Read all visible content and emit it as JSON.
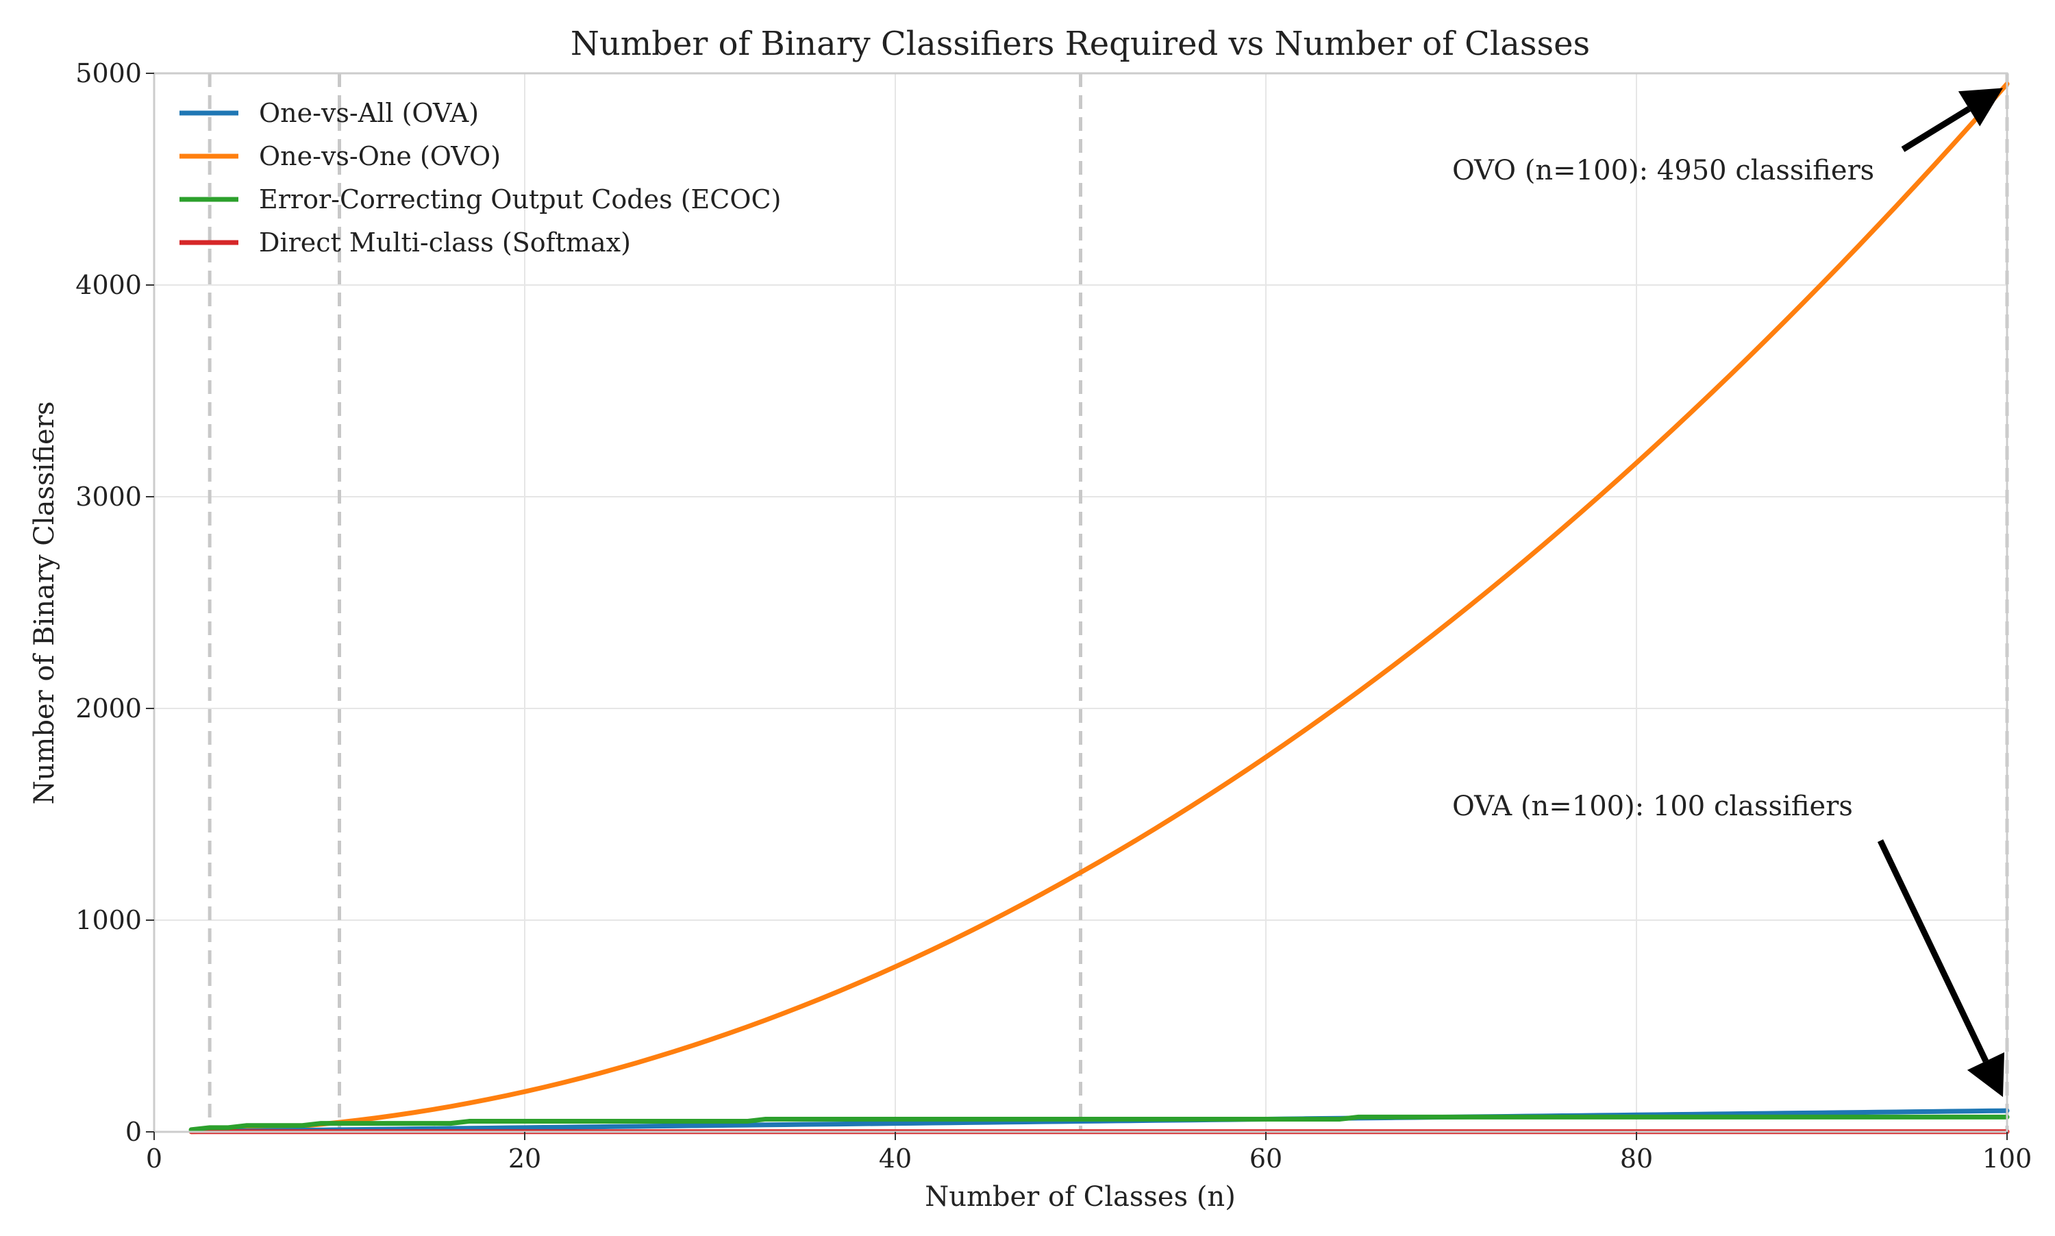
{
  "chart_data": {
    "type": "line",
    "title": "Number of Binary Classifiers Required vs Number of Classes",
    "xlabel": "Number of Classes (n)",
    "ylabel": "Number of Binary Classifiers",
    "xlim": [
      0,
      100
    ],
    "ylim": [
      0,
      5000
    ],
    "xticks": [
      "0",
      "20",
      "40",
      "60",
      "80",
      "100"
    ],
    "xtick_values": [
      0,
      20,
      40,
      60,
      80,
      100
    ],
    "yticks": [
      "0",
      "1000",
      "2000",
      "3000",
      "4000",
      "5000"
    ],
    "ytick_values": [
      0,
      1000,
      2000,
      3000,
      4000,
      5000
    ],
    "grid": true,
    "legend_position": "top-left",
    "reference_lines_x": [
      3,
      10,
      50,
      100
    ],
    "x": [
      2,
      3,
      4,
      5,
      6,
      7,
      8,
      9,
      10,
      11,
      12,
      13,
      14,
      15,
      16,
      17,
      18,
      19,
      20,
      21,
      22,
      23,
      24,
      25,
      26,
      27,
      28,
      29,
      30,
      31,
      32,
      33,
      34,
      35,
      36,
      37,
      38,
      39,
      40,
      41,
      42,
      43,
      44,
      45,
      46,
      47,
      48,
      49,
      50,
      51,
      52,
      53,
      54,
      55,
      56,
      57,
      58,
      59,
      60,
      61,
      62,
      63,
      64,
      65,
      66,
      67,
      68,
      69,
      70,
      71,
      72,
      73,
      74,
      75,
      76,
      77,
      78,
      79,
      80,
      81,
      82,
      83,
      84,
      85,
      86,
      87,
      88,
      89,
      90,
      91,
      92,
      93,
      94,
      95,
      96,
      97,
      98,
      99,
      100
    ],
    "series": [
      {
        "name": "One-vs-All (OVA)",
        "color": "#1f77b4",
        "values": [
          2,
          3,
          4,
          5,
          6,
          7,
          8,
          9,
          10,
          11,
          12,
          13,
          14,
          15,
          16,
          17,
          18,
          19,
          20,
          21,
          22,
          23,
          24,
          25,
          26,
          27,
          28,
          29,
          30,
          31,
          32,
          33,
          34,
          35,
          36,
          37,
          38,
          39,
          40,
          41,
          42,
          43,
          44,
          45,
          46,
          47,
          48,
          49,
          50,
          51,
          52,
          53,
          54,
          55,
          56,
          57,
          58,
          59,
          60,
          61,
          62,
          63,
          64,
          65,
          66,
          67,
          68,
          69,
          70,
          71,
          72,
          73,
          74,
          75,
          76,
          77,
          78,
          79,
          80,
          81,
          82,
          83,
          84,
          85,
          86,
          87,
          88,
          89,
          90,
          91,
          92,
          93,
          94,
          95,
          96,
          97,
          98,
          99,
          100
        ]
      },
      {
        "name": "One-vs-One (OVO)",
        "color": "#ff7f0e",
        "values": [
          1,
          3,
          6,
          10,
          15,
          21,
          28,
          36,
          45,
          55,
          66,
          78,
          91,
          105,
          120,
          136,
          153,
          171,
          190,
          210,
          231,
          253,
          276,
          300,
          325,
          351,
          378,
          406,
          435,
          465,
          496,
          528,
          561,
          595,
          630,
          666,
          703,
          741,
          780,
          820,
          861,
          903,
          946,
          990,
          1035,
          1081,
          1128,
          1176,
          1225,
          1275,
          1326,
          1378,
          1431,
          1485,
          1540,
          1596,
          1653,
          1711,
          1770,
          1830,
          1891,
          1953,
          2016,
          2080,
          2145,
          2211,
          2278,
          2346,
          2415,
          2485,
          2556,
          2628,
          2701,
          2775,
          2850,
          2926,
          3003,
          3081,
          3160,
          3240,
          3321,
          3403,
          3486,
          3570,
          3655,
          3741,
          3828,
          3916,
          4005,
          4095,
          4186,
          4278,
          4371,
          4465,
          4560,
          4656,
          4753,
          4851,
          4950
        ]
      },
      {
        "name": "Error-Correcting Output Codes (ECOC)",
        "color": "#2ca02c",
        "values": [
          10,
          20,
          20,
          30,
          30,
          30,
          30,
          40,
          40,
          40,
          40,
          40,
          40,
          40,
          40,
          50,
          50,
          50,
          50,
          50,
          50,
          50,
          50,
          50,
          50,
          50,
          50,
          50,
          50,
          50,
          50,
          60,
          60,
          60,
          60,
          60,
          60,
          60,
          60,
          60,
          60,
          60,
          60,
          60,
          60,
          60,
          60,
          60,
          60,
          60,
          60,
          60,
          60,
          60,
          60,
          60,
          60,
          60,
          60,
          60,
          60,
          60,
          60,
          70,
          70,
          70,
          70,
          70,
          70,
          70,
          70,
          70,
          70,
          70,
          70,
          70,
          70,
          70,
          70,
          70,
          70,
          70,
          70,
          70,
          70,
          70,
          70,
          70,
          70,
          70,
          70,
          70,
          70,
          70,
          70,
          70,
          70,
          70,
          70
        ]
      },
      {
        "name": "Direct Multi-class (Softmax)",
        "color": "#d62728",
        "values": [
          1,
          1,
          1,
          1,
          1,
          1,
          1,
          1,
          1,
          1,
          1,
          1,
          1,
          1,
          1,
          1,
          1,
          1,
          1,
          1,
          1,
          1,
          1,
          1,
          1,
          1,
          1,
          1,
          1,
          1,
          1,
          1,
          1,
          1,
          1,
          1,
          1,
          1,
          1,
          1,
          1,
          1,
          1,
          1,
          1,
          1,
          1,
          1,
          1,
          1,
          1,
          1,
          1,
          1,
          1,
          1,
          1,
          1,
          1,
          1,
          1,
          1,
          1,
          1,
          1,
          1,
          1,
          1,
          1,
          1,
          1,
          1,
          1,
          1,
          1,
          1,
          1,
          1,
          1,
          1,
          1,
          1,
          1,
          1,
          1,
          1,
          1,
          1,
          1,
          1,
          1,
          1,
          1,
          1,
          1,
          1,
          1,
          1,
          1
        ]
      }
    ],
    "annotations": [
      {
        "text": "OVO (n=100): 4950 classifiers",
        "target": [
          100,
          4950
        ],
        "text_at": [
          70,
          4500
        ]
      },
      {
        "text": "OVA (n=100): 100 classifiers",
        "target": [
          100,
          100
        ],
        "text_at": [
          70,
          1500
        ]
      }
    ]
  }
}
